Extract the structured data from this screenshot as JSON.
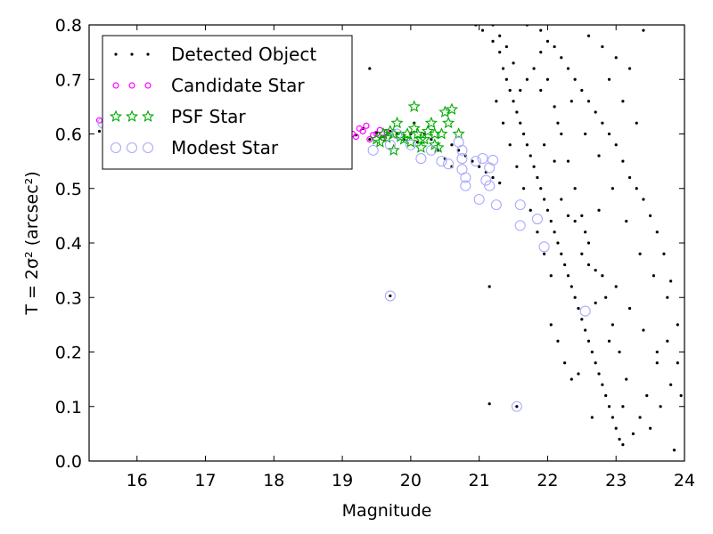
{
  "chart_data": {
    "type": "scatter",
    "xlabel": "Magnitude",
    "ylabel": "T = 2σ² (arcsec²)",
    "xlim": [
      15.3,
      24.0
    ],
    "ylim": [
      0.0,
      0.8
    ],
    "xticks": [
      "16",
      "17",
      "18",
      "19",
      "20",
      "21",
      "22",
      "23",
      "24"
    ],
    "yticks": [
      "0.0",
      "0.1",
      "0.2",
      "0.3",
      "0.4",
      "0.5",
      "0.6",
      "0.7",
      "0.8"
    ],
    "legend_position": "top-left",
    "grid": false,
    "series": [
      {
        "name": "Detected Object",
        "marker": "dot",
        "color": "#000000",
        "points": [
          [
            15.45,
            0.605
          ],
          [
            15.75,
            0.615
          ],
          [
            16.1,
            0.61
          ],
          [
            16.5,
            0.608
          ],
          [
            17.0,
            0.607
          ],
          [
            17.5,
            0.606
          ],
          [
            18.0,
            0.605
          ],
          [
            18.5,
            0.603
          ],
          [
            19.05,
            0.6
          ],
          [
            19.2,
            0.598
          ],
          [
            19.3,
            0.61
          ],
          [
            19.4,
            0.59
          ],
          [
            19.5,
            0.602
          ],
          [
            19.6,
            0.595
          ],
          [
            19.7,
            0.605
          ],
          [
            19.8,
            0.6
          ],
          [
            19.9,
            0.59
          ],
          [
            20.0,
            0.6
          ],
          [
            20.1,
            0.585
          ],
          [
            20.2,
            0.6
          ],
          [
            20.3,
            0.59
          ],
          [
            20.4,
            0.57
          ],
          [
            20.5,
            0.555
          ],
          [
            20.6,
            0.58
          ],
          [
            20.7,
            0.57
          ],
          [
            20.8,
            0.56
          ],
          [
            20.9,
            0.55
          ],
          [
            21.0,
            0.54
          ],
          [
            21.1,
            0.53
          ],
          [
            21.2,
            0.52
          ],
          [
            21.3,
            0.51
          ],
          [
            19.7,
            0.303
          ],
          [
            21.15,
            0.32
          ],
          [
            21.55,
            0.1
          ],
          [
            21.15,
            0.105
          ],
          [
            19.1,
            0.75
          ],
          [
            19.4,
            0.72
          ],
          [
            20.05,
            0.62
          ],
          [
            20.6,
            0.54
          ],
          [
            20.95,
            0.8
          ],
          [
            21.05,
            0.79
          ],
          [
            21.2,
            0.77
          ],
          [
            21.3,
            0.75
          ],
          [
            21.35,
            0.72
          ],
          [
            21.4,
            0.7
          ],
          [
            21.45,
            0.68
          ],
          [
            21.5,
            0.66
          ],
          [
            21.55,
            0.64
          ],
          [
            21.6,
            0.62
          ],
          [
            21.65,
            0.6
          ],
          [
            21.7,
            0.58
          ],
          [
            21.75,
            0.56
          ],
          [
            21.8,
            0.54
          ],
          [
            21.85,
            0.52
          ],
          [
            21.9,
            0.5
          ],
          [
            21.95,
            0.48
          ],
          [
            22.0,
            0.46
          ],
          [
            22.05,
            0.44
          ],
          [
            22.1,
            0.42
          ],
          [
            22.15,
            0.4
          ],
          [
            22.2,
            0.38
          ],
          [
            22.25,
            0.36
          ],
          [
            22.3,
            0.34
          ],
          [
            22.35,
            0.32
          ],
          [
            22.4,
            0.3
          ],
          [
            22.45,
            0.28
          ],
          [
            22.5,
            0.26
          ],
          [
            22.55,
            0.24
          ],
          [
            22.6,
            0.22
          ],
          [
            22.65,
            0.2
          ],
          [
            22.7,
            0.18
          ],
          [
            22.75,
            0.16
          ],
          [
            22.8,
            0.14
          ],
          [
            22.85,
            0.12
          ],
          [
            22.9,
            0.1
          ],
          [
            22.95,
            0.08
          ],
          [
            23.0,
            0.06
          ],
          [
            23.05,
            0.04
          ],
          [
            23.1,
            0.03
          ],
          [
            21.9,
            0.79
          ],
          [
            22.0,
            0.77
          ],
          [
            22.1,
            0.76
          ],
          [
            22.2,
            0.74
          ],
          [
            22.3,
            0.72
          ],
          [
            22.4,
            0.7
          ],
          [
            22.5,
            0.68
          ],
          [
            22.6,
            0.66
          ],
          [
            22.7,
            0.64
          ],
          [
            22.8,
            0.62
          ],
          [
            22.9,
            0.6
          ],
          [
            23.0,
            0.58
          ],
          [
            23.1,
            0.55
          ],
          [
            23.2,
            0.52
          ],
          [
            23.3,
            0.5
          ],
          [
            23.4,
            0.48
          ],
          [
            23.5,
            0.45
          ],
          [
            23.6,
            0.42
          ],
          [
            23.7,
            0.38
          ],
          [
            23.8,
            0.33
          ],
          [
            23.9,
            0.25
          ],
          [
            23.95,
            0.12
          ],
          [
            23.85,
            0.02
          ],
          [
            23.75,
            0.22
          ],
          [
            23.6,
            0.18
          ],
          [
            23.45,
            0.12
          ],
          [
            23.35,
            0.08
          ],
          [
            23.25,
            0.05
          ],
          [
            23.15,
            0.15
          ],
          [
            23.05,
            0.2
          ],
          [
            22.95,
            0.25
          ],
          [
            22.85,
            0.3
          ],
          [
            22.7,
            0.35
          ],
          [
            22.6,
            0.4
          ],
          [
            22.5,
            0.45
          ],
          [
            22.4,
            0.5
          ],
          [
            22.3,
            0.55
          ],
          [
            22.2,
            0.6
          ],
          [
            22.1,
            0.65
          ],
          [
            22.0,
            0.7
          ],
          [
            21.9,
            0.75
          ],
          [
            21.8,
            0.72
          ],
          [
            21.7,
            0.7
          ],
          [
            21.6,
            0.68
          ],
          [
            21.5,
            0.73
          ],
          [
            21.4,
            0.76
          ],
          [
            21.3,
            0.78
          ],
          [
            21.2,
            0.8
          ],
          [
            22.6,
            0.78
          ],
          [
            22.8,
            0.76
          ],
          [
            23.0,
            0.74
          ],
          [
            23.2,
            0.72
          ],
          [
            23.4,
            0.79
          ],
          [
            22.9,
            0.7
          ],
          [
            23.1,
            0.66
          ],
          [
            23.3,
            0.62
          ],
          [
            22.2,
            0.48
          ],
          [
            22.4,
            0.44
          ],
          [
            22.6,
            0.36
          ],
          [
            22.8,
            0.34
          ],
          [
            23.0,
            0.32
          ],
          [
            23.2,
            0.28
          ],
          [
            23.4,
            0.24
          ],
          [
            23.6,
            0.2
          ],
          [
            22.05,
            0.25
          ],
          [
            22.15,
            0.22
          ],
          [
            22.25,
            0.18
          ],
          [
            22.35,
            0.15
          ],
          [
            22.55,
            0.42
          ],
          [
            22.75,
            0.46
          ],
          [
            22.95,
            0.5
          ],
          [
            23.15,
            0.44
          ],
          [
            23.35,
            0.38
          ],
          [
            23.55,
            0.34
          ],
          [
            23.75,
            0.3
          ],
          [
            21.95,
            0.58
          ],
          [
            22.15,
            0.62
          ],
          [
            22.35,
            0.66
          ],
          [
            22.55,
            0.6
          ],
          [
            22.75,
            0.56
          ],
          [
            21.7,
            0.8
          ],
          [
            21.9,
            0.68
          ],
          [
            22.1,
            0.55
          ],
          [
            22.3,
            0.45
          ],
          [
            22.5,
            0.38
          ],
          [
            22.7,
            0.29
          ],
          [
            22.9,
            0.22
          ],
          [
            23.1,
            0.1
          ],
          [
            21.25,
            0.66
          ],
          [
            21.35,
            0.62
          ],
          [
            21.45,
            0.58
          ],
          [
            21.55,
            0.54
          ],
          [
            21.65,
            0.5
          ],
          [
            21.75,
            0.46
          ],
          [
            21.85,
            0.42
          ],
          [
            21.95,
            0.38
          ],
          [
            22.05,
            0.34
          ],
          [
            22.45,
            0.16
          ],
          [
            22.65,
            0.08
          ],
          [
            23.5,
            0.06
          ],
          [
            23.65,
            0.1
          ],
          [
            23.8,
            0.14
          ],
          [
            23.9,
            0.18
          ]
        ]
      },
      {
        "name": "Candidate Star",
        "marker": "circle-small",
        "color": "#ff00ff",
        "points": [
          [
            15.45,
            0.625
          ],
          [
            15.55,
            0.61
          ],
          [
            15.65,
            0.605
          ],
          [
            19.15,
            0.6
          ],
          [
            19.2,
            0.595
          ],
          [
            19.25,
            0.61
          ],
          [
            19.3,
            0.605
          ],
          [
            19.35,
            0.615
          ],
          [
            19.4,
            0.59
          ],
          [
            19.45,
            0.598
          ],
          [
            19.5,
            0.6
          ],
          [
            19.55,
            0.607
          ],
          [
            19.6,
            0.593
          ],
          [
            19.65,
            0.603
          ]
        ]
      },
      {
        "name": "PSF Star",
        "marker": "star",
        "color": "#00aa00",
        "points": [
          [
            19.5,
            0.59
          ],
          [
            19.55,
            0.585
          ],
          [
            19.6,
            0.6
          ],
          [
            19.65,
            0.593
          ],
          [
            19.7,
            0.605
          ],
          [
            19.75,
            0.6
          ],
          [
            19.8,
            0.62
          ],
          [
            19.85,
            0.595
          ],
          [
            19.9,
            0.59
          ],
          [
            19.95,
            0.6
          ],
          [
            20.0,
            0.585
          ],
          [
            20.05,
            0.61
          ],
          [
            20.1,
            0.6
          ],
          [
            20.15,
            0.59
          ],
          [
            20.2,
            0.59
          ],
          [
            20.25,
            0.605
          ],
          [
            20.3,
            0.62
          ],
          [
            20.35,
            0.6
          ],
          [
            20.4,
            0.575
          ],
          [
            20.45,
            0.6
          ],
          [
            20.5,
            0.64
          ],
          [
            20.55,
            0.62
          ],
          [
            20.6,
            0.645
          ],
          [
            20.7,
            0.6
          ],
          [
            20.05,
            0.65
          ],
          [
            19.75,
            0.57
          ],
          [
            20.15,
            0.575
          ],
          [
            20.35,
            0.58
          ]
        ]
      },
      {
        "name": "Modest Star",
        "marker": "circle",
        "color": "#aaaaff",
        "points": [
          [
            15.5,
            0.62
          ],
          [
            15.7,
            0.61
          ],
          [
            19.45,
            0.57
          ],
          [
            19.7,
            0.58
          ],
          [
            19.8,
            0.6
          ],
          [
            20.0,
            0.58
          ],
          [
            20.15,
            0.555
          ],
          [
            20.3,
            0.57
          ],
          [
            20.45,
            0.55
          ],
          [
            20.55,
            0.545
          ],
          [
            20.7,
            0.585
          ],
          [
            20.75,
            0.57
          ],
          [
            20.75,
            0.555
          ],
          [
            20.75,
            0.535
          ],
          [
            20.8,
            0.52
          ],
          [
            20.8,
            0.505
          ],
          [
            20.95,
            0.55
          ],
          [
            21.0,
            0.48
          ],
          [
            21.05,
            0.555
          ],
          [
            21.1,
            0.515
          ],
          [
            21.15,
            0.505
          ],
          [
            21.15,
            0.538
          ],
          [
            21.2,
            0.552
          ],
          [
            21.25,
            0.47
          ],
          [
            21.6,
            0.47
          ],
          [
            21.6,
            0.432
          ],
          [
            21.85,
            0.444
          ],
          [
            21.95,
            0.393
          ],
          [
            19.7,
            0.303
          ],
          [
            22.55,
            0.275
          ],
          [
            21.55,
            0.1
          ]
        ]
      }
    ]
  }
}
